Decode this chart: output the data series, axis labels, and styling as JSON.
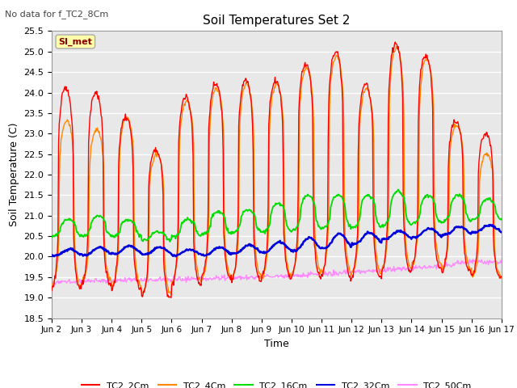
{
  "title": "Soil Temperatures Set 2",
  "subtitle": "No data for f_TC2_8Cm",
  "xlabel": "Time",
  "ylabel": "Soil Temperature (C)",
  "ylim": [
    18.5,
    25.5
  ],
  "background_color": "#e8e8e8",
  "grid_color": "#ffffff",
  "series_colors": {
    "TC2_2Cm": "#ff0000",
    "TC2_4Cm": "#ff8800",
    "TC2_16Cm": "#00dd00",
    "TC2_32Cm": "#0000dd",
    "TC2_50Cm": "#ff88ff"
  },
  "series_linewidths": {
    "TC2_2Cm": 1.0,
    "TC2_4Cm": 1.0,
    "TC2_16Cm": 1.3,
    "TC2_32Cm": 1.8,
    "TC2_50Cm": 1.0
  },
  "xtick_labels": [
    "Jun 2",
    "Jun 3",
    "Jun 4",
    "Jun 5",
    "Jun 6",
    "Jun 7",
    "Jun 8",
    "Jun 9",
    "Jun 10",
    "Jun 11",
    "Jun 12",
    "Jun 13",
    "Jun 14",
    "Jun 15",
    "Jun 16",
    "Jun 17"
  ],
  "ytick_values": [
    18.5,
    19.0,
    19.5,
    20.0,
    20.5,
    21.0,
    21.5,
    22.0,
    22.5,
    23.0,
    23.5,
    24.0,
    24.5,
    25.0,
    25.5
  ],
  "si_met_label": "SI_met",
  "legend_entries": [
    "TC2_2Cm",
    "TC2_4Cm",
    "TC2_16Cm",
    "TC2_32Cm",
    "TC2_50Cm"
  ],
  "peak_2cm": [
    24.1,
    24.0,
    23.4,
    22.6,
    23.9,
    24.2,
    24.3,
    24.3,
    24.7,
    25.0,
    24.2,
    25.2,
    24.9,
    23.3,
    23.0
  ],
  "trough_2cm": [
    19.2,
    19.3,
    19.2,
    19.0,
    19.3,
    19.5,
    19.4,
    19.5,
    19.5,
    19.5,
    19.5,
    19.6,
    19.7,
    19.6,
    19.5
  ],
  "peak_4cm": [
    23.3,
    23.1,
    23.4,
    22.5,
    23.8,
    24.1,
    24.2,
    24.2,
    24.6,
    24.9,
    24.1,
    25.1,
    24.8,
    23.2,
    22.5
  ],
  "trough_4cm": [
    19.3,
    19.4,
    19.3,
    19.1,
    19.4,
    19.5,
    19.5,
    19.5,
    19.6,
    19.6,
    19.6,
    19.7,
    19.8,
    19.7,
    19.5
  ],
  "peak_16cm": [
    20.9,
    21.0,
    20.9,
    20.6,
    20.9,
    21.1,
    21.15,
    21.3,
    21.5,
    21.5,
    21.5,
    21.6,
    21.5,
    21.5,
    21.4
  ],
  "trough_16cm": [
    20.5,
    20.5,
    20.5,
    20.4,
    20.5,
    20.55,
    20.6,
    20.6,
    20.65,
    20.7,
    20.7,
    20.75,
    20.8,
    20.85,
    20.9
  ],
  "base_32cm": [
    20.1,
    20.13,
    20.16,
    20.14,
    20.1,
    20.13,
    20.18,
    20.23,
    20.3,
    20.38,
    20.45,
    20.52,
    20.58,
    20.63,
    20.68
  ],
  "amp_32cm": [
    0.08,
    0.09,
    0.1,
    0.09,
    0.07,
    0.1,
    0.1,
    0.13,
    0.16,
    0.18,
    0.14,
    0.1,
    0.11,
    0.1,
    0.09
  ],
  "base_50cm": [
    19.38,
    19.4,
    19.42,
    19.43,
    19.44,
    19.46,
    19.48,
    19.5,
    19.53,
    19.58,
    19.62,
    19.67,
    19.72,
    19.77,
    19.88
  ]
}
